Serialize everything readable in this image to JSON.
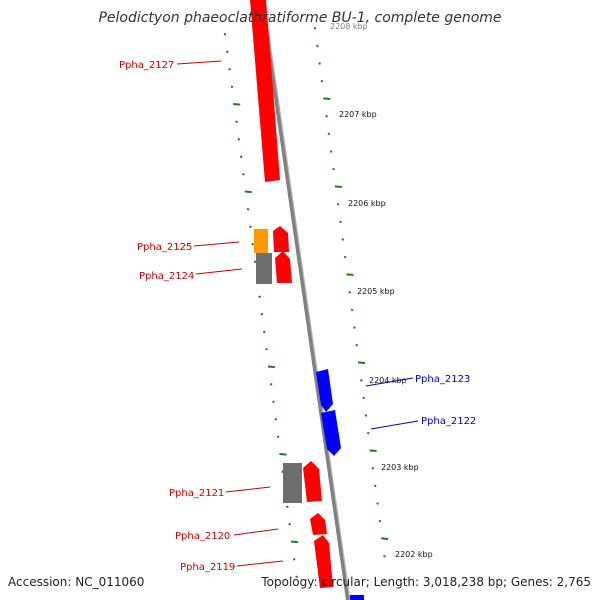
{
  "title": "Pelodictyon phaeoclathratiforme BU-1, complete genome",
  "footer": {
    "accession": "Accession: NC_011060",
    "summary": "Topology: circular; Length: 3,018,238 bp; Genes: 2,765"
  },
  "colors": {
    "backbone": "#8c8c8c",
    "tick": "#1e7d1e",
    "gene_forward": "#ff0000",
    "gene_reverse": "#0000ff",
    "gene_gray": "#6e6e6e",
    "gene_orange": "#ff9900",
    "label_forward": "#cc0000",
    "label_reverse": "#0000cc"
  },
  "kbp_labels": [
    "2208 kbp",
    "2207 kbp",
    "2206 kbp",
    "2205 kbp",
    "2204 kbp",
    "2203 kbp",
    "2202 kbp"
  ],
  "gene_labels": [
    {
      "name": "Ppha_2127",
      "strand": "forward"
    },
    {
      "name": "Ppha_2125",
      "strand": "forward"
    },
    {
      "name": "Ppha_2124",
      "strand": "forward"
    },
    {
      "name": "Ppha_2123",
      "strand": "reverse"
    },
    {
      "name": "Ppha_2122",
      "strand": "reverse"
    },
    {
      "name": "Ppha_2121",
      "strand": "forward"
    },
    {
      "name": "Ppha_2120",
      "strand": "forward"
    },
    {
      "name": "Ppha_2119",
      "strand": "forward"
    }
  ]
}
